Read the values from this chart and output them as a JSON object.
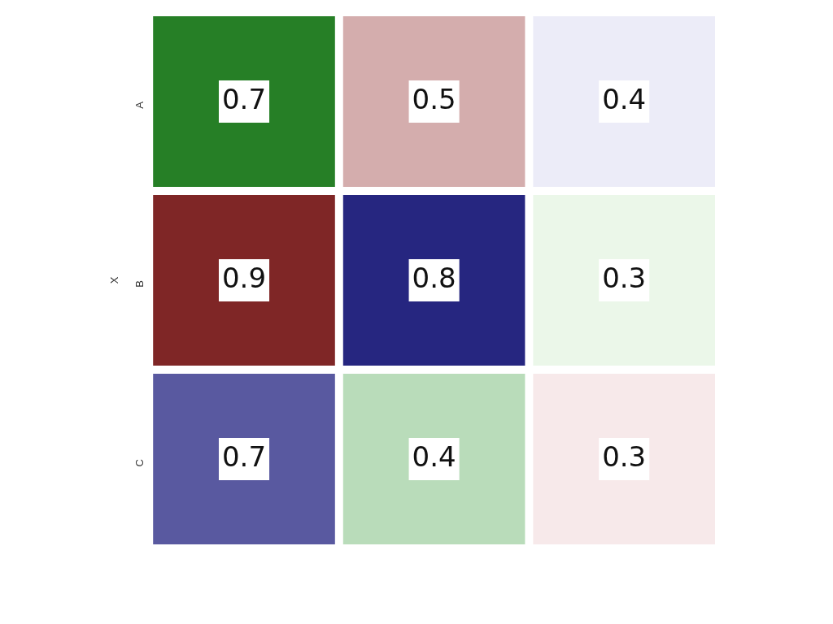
{
  "chart_data": {
    "type": "heatmap",
    "ylabel": "X",
    "categories": [
      null,
      null,
      null
    ],
    "y_categories": [
      "A",
      "B",
      "C"
    ],
    "cells": [
      [
        0.7,
        0.5,
        0.4
      ],
      [
        0.9,
        0.8,
        0.3
      ],
      [
        0.7,
        0.4,
        0.3
      ]
    ],
    "colors": [
      [
        "#267f26",
        "#d4adad",
        "#ececf8"
      ],
      [
        "#7f2626",
        "#262680",
        "#ebf7e9"
      ],
      [
        "#5959a0",
        "#b9dcba",
        "#f7e9ea"
      ]
    ],
    "data_labels": true,
    "tick_labels": "y"
  }
}
